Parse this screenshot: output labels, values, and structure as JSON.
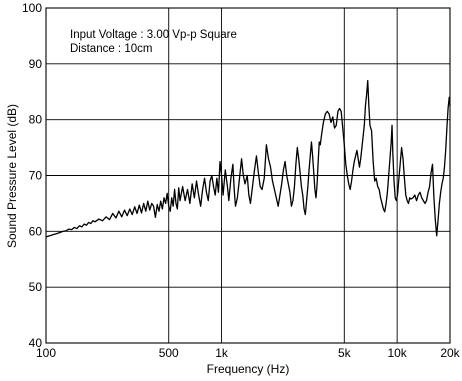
{
  "chart_data": {
    "type": "line",
    "title": "",
    "xlabel": "Frequency (Hz)",
    "ylabel": "Sound Pressure Level (dB)",
    "xscale": "log",
    "xlim": [
      100,
      20000
    ],
    "ylim": [
      40,
      100
    ],
    "grid": true,
    "x_ticks": [
      {
        "value": 100,
        "label": "100"
      },
      {
        "value": 500,
        "label": "500"
      },
      {
        "value": 1000,
        "label": "1k"
      },
      {
        "value": 5000,
        "label": "5k"
      },
      {
        "value": 10000,
        "label": "10k"
      },
      {
        "value": 20000,
        "label": "20k"
      }
    ],
    "y_ticks": [
      40,
      50,
      60,
      70,
      80,
      90,
      100
    ],
    "annotations": [
      "Input Voltage : 3.00 Vp-p Square",
      "Distance : 10cm"
    ],
    "series": [
      {
        "color": "#000000",
        "points": [
          [
            100,
            59.0
          ],
          [
            105,
            59.2
          ],
          [
            110,
            59.4
          ],
          [
            115,
            59.6
          ],
          [
            120,
            59.8
          ],
          [
            125,
            60.0
          ],
          [
            130,
            60.1
          ],
          [
            135,
            60.4
          ],
          [
            140,
            60.3
          ],
          [
            145,
            60.7
          ],
          [
            150,
            60.5
          ],
          [
            155,
            61.0
          ],
          [
            160,
            60.8
          ],
          [
            165,
            61.3
          ],
          [
            170,
            61.1
          ],
          [
            175,
            61.6
          ],
          [
            180,
            61.4
          ],
          [
            185,
            61.9
          ],
          [
            190,
            61.7
          ],
          [
            200,
            62.2
          ],
          [
            210,
            61.9
          ],
          [
            220,
            62.6
          ],
          [
            230,
            62.1
          ],
          [
            240,
            63.2
          ],
          [
            250,
            62.4
          ],
          [
            260,
            63.6
          ],
          [
            270,
            62.6
          ],
          [
            280,
            63.8
          ],
          [
            290,
            62.8
          ],
          [
            300,
            64.0
          ],
          [
            310,
            63.0
          ],
          [
            320,
            64.4
          ],
          [
            330,
            63.2
          ],
          [
            340,
            64.7
          ],
          [
            350,
            63.3
          ],
          [
            360,
            65.0
          ],
          [
            370,
            63.6
          ],
          [
            380,
            65.4
          ],
          [
            390,
            63.8
          ],
          [
            400,
            65.0
          ],
          [
            410,
            64.5
          ],
          [
            420,
            62.5
          ],
          [
            430,
            64.8
          ],
          [
            440,
            63.6
          ],
          [
            450,
            65.4
          ],
          [
            460,
            64.0
          ],
          [
            470,
            66.0
          ],
          [
            480,
            65.0
          ],
          [
            490,
            66.8
          ],
          [
            500,
            64.5
          ],
          [
            510,
            63.6
          ],
          [
            520,
            66.0
          ],
          [
            530,
            64.5
          ],
          [
            540,
            67.5
          ],
          [
            550,
            65.0
          ],
          [
            560,
            64.0
          ],
          [
            570,
            67.8
          ],
          [
            580,
            65.5
          ],
          [
            600,
            68.0
          ],
          [
            620,
            65.5
          ],
          [
            640,
            67.5
          ],
          [
            660,
            65.0
          ],
          [
            680,
            68.5
          ],
          [
            700,
            66.0
          ],
          [
            720,
            69.0
          ],
          [
            740,
            66.5
          ],
          [
            760,
            64.5
          ],
          [
            780,
            67.5
          ],
          [
            800,
            69.5
          ],
          [
            820,
            67.0
          ],
          [
            840,
            65.5
          ],
          [
            860,
            69.0
          ],
          [
            880,
            70.0
          ],
          [
            900,
            68.0
          ],
          [
            920,
            66.5
          ],
          [
            940,
            69.5
          ],
          [
            960,
            67.0
          ],
          [
            980,
            72.5
          ],
          [
            1000,
            70.0
          ],
          [
            1020,
            66.5
          ],
          [
            1050,
            71.0
          ],
          [
            1080,
            68.0
          ],
          [
            1100,
            65.5
          ],
          [
            1130,
            69.5
          ],
          [
            1160,
            72.0
          ],
          [
            1180,
            67.5
          ],
          [
            1200,
            64.5
          ],
          [
            1230,
            66.0
          ],
          [
            1260,
            69.0
          ],
          [
            1300,
            73.0
          ],
          [
            1330,
            70.0
          ],
          [
            1360,
            68.5
          ],
          [
            1400,
            70.0
          ],
          [
            1430,
            66.5
          ],
          [
            1460,
            65.0
          ],
          [
            1500,
            68.0
          ],
          [
            1540,
            71.0
          ],
          [
            1580,
            73.5
          ],
          [
            1620,
            70.5
          ],
          [
            1660,
            68.0
          ],
          [
            1700,
            67.5
          ],
          [
            1750,
            69.5
          ],
          [
            1800,
            75.5
          ],
          [
            1850,
            73.0
          ],
          [
            1900,
            71.5
          ],
          [
            1950,
            69.0
          ],
          [
            2000,
            67.5
          ],
          [
            2050,
            66.0
          ],
          [
            2100,
            64.5
          ],
          [
            2150,
            66.5
          ],
          [
            2200,
            68.5
          ],
          [
            2250,
            71.0
          ],
          [
            2300,
            72.5
          ],
          [
            2350,
            70.0
          ],
          [
            2400,
            68.5
          ],
          [
            2450,
            67.0
          ],
          [
            2500,
            64.5
          ],
          [
            2550,
            65.5
          ],
          [
            2600,
            68.0
          ],
          [
            2650,
            72.0
          ],
          [
            2700,
            75.0
          ],
          [
            2750,
            73.0
          ],
          [
            2800,
            70.5
          ],
          [
            2850,
            68.0
          ],
          [
            2900,
            66.5
          ],
          [
            2950,
            64.0
          ],
          [
            3000,
            63.0
          ],
          [
            3050,
            65.5
          ],
          [
            3100,
            68.0
          ],
          [
            3150,
            71.0
          ],
          [
            3200,
            73.5
          ],
          [
            3250,
            76.0
          ],
          [
            3300,
            73.5
          ],
          [
            3350,
            70.5
          ],
          [
            3400,
            67.5
          ],
          [
            3450,
            66.0
          ],
          [
            3500,
            68.5
          ],
          [
            3550,
            72.5
          ],
          [
            3600,
            76.0
          ],
          [
            3650,
            75.5
          ],
          [
            3700,
            77.0
          ],
          [
            3800,
            79.5
          ],
          [
            3900,
            81.0
          ],
          [
            4000,
            81.5
          ],
          [
            4100,
            81.0
          ],
          [
            4200,
            79.5
          ],
          [
            4300,
            80.5
          ],
          [
            4400,
            78.5
          ],
          [
            4500,
            79.0
          ],
          [
            4600,
            81.5
          ],
          [
            4700,
            82.0
          ],
          [
            4800,
            81.5
          ],
          [
            4900,
            78.5
          ],
          [
            5000,
            75.5
          ],
          [
            5100,
            72.0
          ],
          [
            5200,
            70.0
          ],
          [
            5300,
            68.5
          ],
          [
            5400,
            67.5
          ],
          [
            5500,
            69.0
          ],
          [
            5600,
            71.0
          ],
          [
            5700,
            72.5
          ],
          [
            5800,
            73.5
          ],
          [
            5900,
            74.5
          ],
          [
            6000,
            73.0
          ],
          [
            6100,
            71.5
          ],
          [
            6200,
            73.0
          ],
          [
            6300,
            75.0
          ],
          [
            6400,
            77.0
          ],
          [
            6500,
            79.0
          ],
          [
            6600,
            82.5
          ],
          [
            6700,
            84.5
          ],
          [
            6800,
            87.0
          ],
          [
            6900,
            82.5
          ],
          [
            7000,
            79.0
          ],
          [
            7150,
            78.0
          ],
          [
            7300,
            72.5
          ],
          [
            7450,
            69.0
          ],
          [
            7600,
            69.5
          ],
          [
            7750,
            68.0
          ],
          [
            7900,
            67.5
          ],
          [
            8050,
            66.0
          ],
          [
            8200,
            65.0
          ],
          [
            8350,
            64.0
          ],
          [
            8500,
            63.5
          ],
          [
            8650,
            65.0
          ],
          [
            8800,
            67.0
          ],
          [
            8950,
            70.0
          ],
          [
            9100,
            73.0
          ],
          [
            9250,
            76.0
          ],
          [
            9350,
            79.0
          ],
          [
            9450,
            74.0
          ],
          [
            9600,
            69.0
          ],
          [
            9750,
            66.0
          ],
          [
            9900,
            65.5
          ],
          [
            10050,
            66.5
          ],
          [
            10200,
            69.0
          ],
          [
            10400,
            72.0
          ],
          [
            10600,
            75.0
          ],
          [
            10800,
            73.0
          ],
          [
            11000,
            69.5
          ],
          [
            11200,
            66.5
          ],
          [
            11400,
            65.5
          ],
          [
            11600,
            65.0
          ],
          [
            11800,
            66.0
          ],
          [
            12000,
            65.8
          ],
          [
            12300,
            66.0
          ],
          [
            12600,
            66.5
          ],
          [
            12900,
            65.5
          ],
          [
            13200,
            66.5
          ],
          [
            13500,
            67.0
          ],
          [
            13800,
            66.0
          ],
          [
            14100,
            65.5
          ],
          [
            14400,
            65.0
          ],
          [
            14700,
            65.5
          ],
          [
            15000,
            67.0
          ],
          [
            15300,
            68.0
          ],
          [
            15600,
            70.5
          ],
          [
            15900,
            72.0
          ],
          [
            16200,
            66.0
          ],
          [
            16500,
            62.0
          ],
          [
            16800,
            59.2
          ],
          [
            17100,
            62.0
          ],
          [
            17400,
            65.0
          ],
          [
            17700,
            67.0
          ],
          [
            18000,
            68.5
          ],
          [
            18300,
            69.5
          ],
          [
            18600,
            71.5
          ],
          [
            18900,
            74.5
          ],
          [
            19200,
            78.5
          ],
          [
            19500,
            82.0
          ],
          [
            19800,
            84.0
          ],
          [
            20000,
            82.5
          ]
        ]
      }
    ]
  }
}
